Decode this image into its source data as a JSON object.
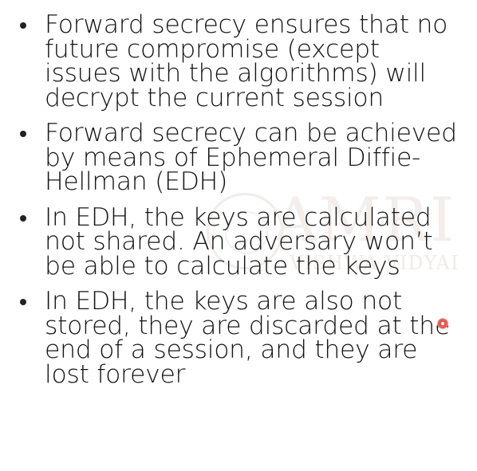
{
  "watermark": {
    "name": "AMRI",
    "subtitle": "VISHWA VIDYAI"
  },
  "bullets": [
    {
      "text": "Forward secrecy ensures that no future compromise (except issues with the algorithms) will decrypt the current session"
    },
    {
      "text": "Forward secrecy can be achieved by means of Ephemeral Diffie-Hellman (EDH)"
    },
    {
      "text": "In EDH, the keys are calculated not shared. An adversary won’t be able to calculate the keys"
    },
    {
      "text": "In EDH, the keys are also not stored, they are discarded at the end of a session, and they are lost forever"
    }
  ],
  "pointer": {
    "icon": "laser-pointer-icon",
    "color": "#e8574f"
  }
}
